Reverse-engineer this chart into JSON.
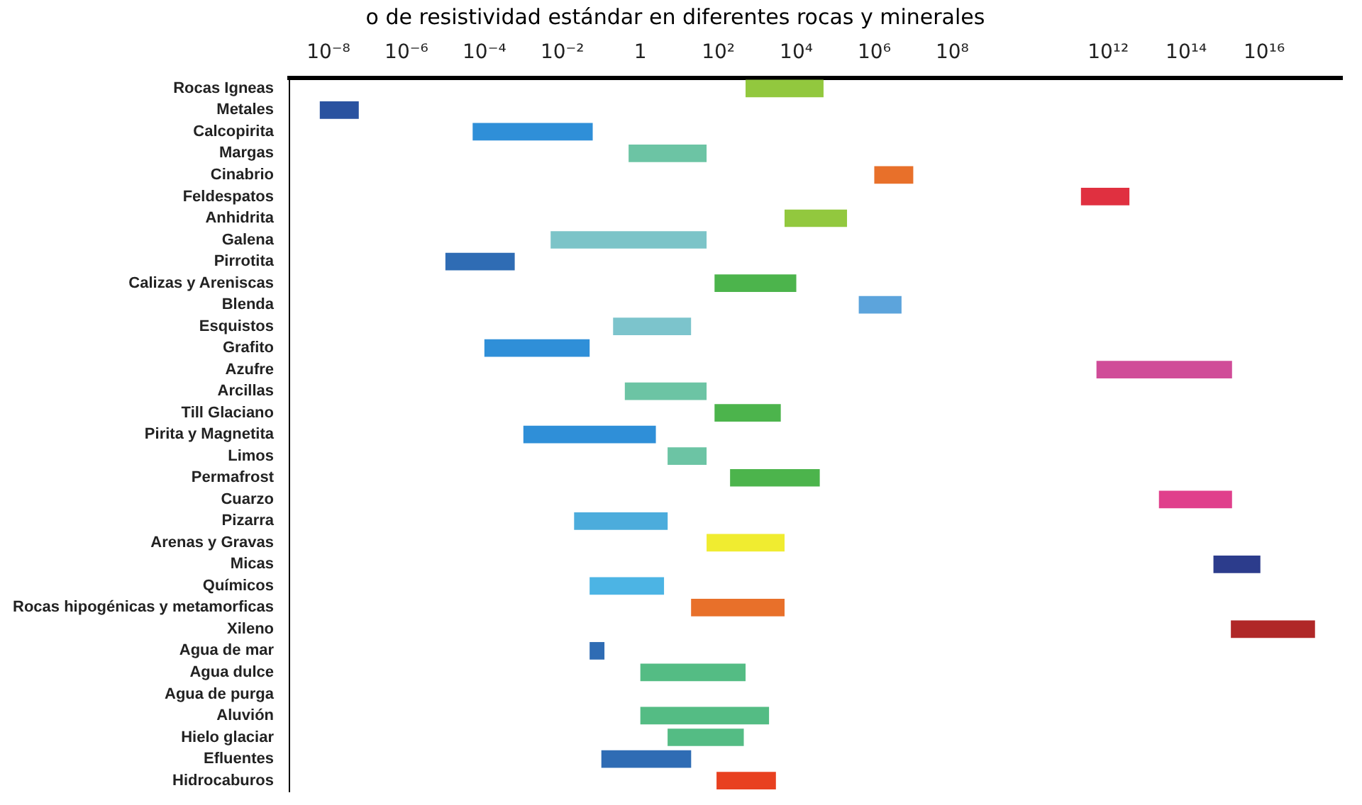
{
  "chart_data": {
    "type": "bar",
    "orientation": "horizontal",
    "log": "x",
    "title": "o de resistividad estándar en diferentes rocas y minerales",
    "categories": [
      "Rocas Igneas",
      "Metales",
      "Calcopirita",
      "Margas",
      "Cinabrio",
      "Feldespatos",
      "Anhidrita",
      "Galena",
      "Pirrotita",
      "Calizas y Areniscas",
      "Blenda",
      "Esquistos",
      "Grafito",
      "Azufre",
      "Arcillas",
      "Till Glaciano",
      "Pirita y Magnetita",
      "Limos",
      "Permafrost",
      "Cuarzo",
      "Pizarra",
      "Arenas y Gravas",
      "Micas",
      "Químicos",
      "Rocas hipogénicas y metamorficas",
      "Xileno",
      "Agua de mar",
      "Agua dulce",
      "Agua de purga",
      "Aluvión",
      "Hielo glaciar",
      "Efluentes",
      "Hidrocaburos"
    ],
    "base": [
      500,
      6e-09,
      5e-05,
      0.5,
      1000000.0,
      200000000000.0,
      5000.0,
      0.005,
      1e-05,
      80,
      400000.0,
      0.2,
      0.0001,
      500000000000.0,
      0.4,
      80,
      0.001,
      5,
      200,
      20000000000000.0,
      0.02,
      50,
      500000000000000.0,
      0.05,
      20,
      1400000000000000.0,
      0.05,
      1,
      null,
      1,
      5,
      0.1,
      90
    ],
    "values": [
      49500,
      5.4e-08,
      0.06,
      49.5,
      9000000.0,
      3300000000000.0,
      195000.0,
      50,
      0.00059,
      9920,
      4600000.0,
      19.8,
      0.05,
      1500000000000000.0,
      49.6,
      3920,
      2.5,
      45,
      39800,
      1480000000000000.0,
      5,
      4950,
      7500000000000000.0,
      4,
      4980,
      2e+17,
      0.07,
      499,
      null,
      1999,
      445,
      20,
      2910
    ],
    "colors": [
      "#92c83e",
      "#2a52a0",
      "#2f8fd8",
      "#6cc4a4",
      "#e8702a",
      "#e03040",
      "#92c83e",
      "#7cc4c8",
      "#2f6cb4",
      "#4cb44c",
      "#5ca4dc",
      "#7cc4cc",
      "#2f8fd8",
      "#d04c98",
      "#6cc4a4",
      "#4cb44c",
      "#2f8fd8",
      "#6cc4a4",
      "#4cb44c",
      "#e0408c",
      "#4cacdc",
      "#f0ec30",
      "#2c3c8c",
      "#4cb4e4",
      "#e8702a",
      "#b02828",
      "#2f6cb4",
      "#54bc84",
      null,
      "#54bc84",
      "#54bc84",
      "#2f6cb4",
      "#e84020"
    ],
    "xlim": [
      1e-09,
      1e+18
    ],
    "xticks": [
      {
        "value": 1e-08,
        "label": "10⁻⁸"
      },
      {
        "value": 1e-06,
        "label": "10⁻⁶"
      },
      {
        "value": 0.0001,
        "label": "10⁻⁴"
      },
      {
        "value": 0.01,
        "label": "10⁻²"
      },
      {
        "value": 1,
        "label": "1"
      },
      {
        "value": 100,
        "label": "10²"
      },
      {
        "value": 10000.0,
        "label": "10⁴"
      },
      {
        "value": 1000000.0,
        "label": "10⁶"
      },
      {
        "value": 100000000.0,
        "label": "10⁸"
      },
      {
        "value": 1000000000000.0,
        "label": "10¹²"
      },
      {
        "value": 100000000000000.0,
        "label": "10¹⁴"
      },
      {
        "value": 1e+16,
        "label": "10¹⁶"
      }
    ]
  }
}
